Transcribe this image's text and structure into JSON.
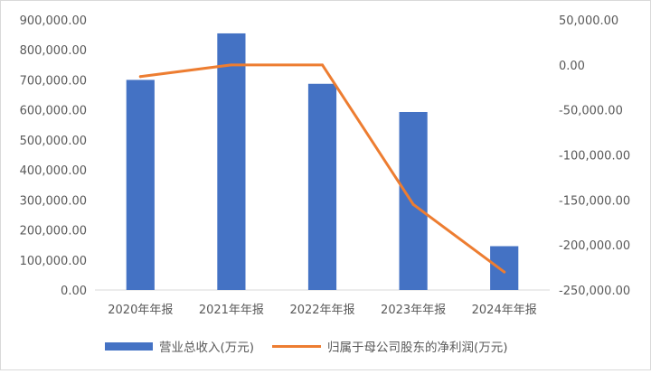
{
  "chart_data": {
    "type": "bar+line",
    "categories": [
      "2020年年报",
      "2021年年报",
      "2022年年报",
      "2023年年报",
      "2024年年报"
    ],
    "series": [
      {
        "name": "营业总收入(万元)",
        "type": "bar",
        "axis": "left",
        "color": "#4472C4",
        "values": [
          700000,
          855000,
          687000,
          593000,
          146000
        ]
      },
      {
        "name": "归属于母公司股东的净利润(万元)",
        "type": "line",
        "axis": "right",
        "color": "#ED7D31",
        "values": [
          -13000,
          0,
          0,
          -155000,
          -230000
        ]
      }
    ],
    "y_left": {
      "min": 0,
      "max": 900000,
      "ticks": [
        0,
        100000,
        200000,
        300000,
        400000,
        500000,
        600000,
        700000,
        800000,
        900000
      ],
      "tick_labels": [
        "0.00",
        "100,000.00",
        "200,000.00",
        "300,000.00",
        "400,000.00",
        "500,000.00",
        "600,000.00",
        "700,000.00",
        "800,000.00",
        "900,000.00"
      ]
    },
    "y_right": {
      "min": -250000,
      "max": 50000,
      "ticks": [
        -250000,
        -200000,
        -150000,
        -100000,
        -50000,
        0,
        50000
      ],
      "tick_labels": [
        "-250,000.00",
        "-200,000.00",
        "-150,000.00",
        "-100,000.00",
        "-50,000.00",
        "0.00",
        "50,000.00"
      ]
    },
    "grid": false,
    "legend_position": "bottom"
  }
}
